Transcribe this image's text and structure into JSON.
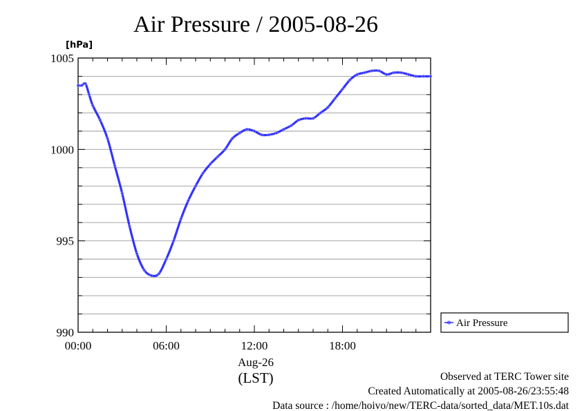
{
  "chart_data": {
    "type": "line",
    "title": "Air Pressure / 2005-08-26",
    "ylabel": "[hPa]",
    "ylim": [
      990,
      1005
    ],
    "y_ticks": [
      "990",
      "995",
      "1000",
      "1005"
    ],
    "y_minor_step": 1,
    "x_domain_hours": [
      0,
      24
    ],
    "x_ticks": [
      {
        "hour": 0,
        "label": "00:00"
      },
      {
        "hour": 6,
        "label": "06:00"
      },
      {
        "hour": 12,
        "label": "12:00"
      },
      {
        "hour": 18,
        "label": "18:00"
      }
    ],
    "x_date_label": "Aug-26",
    "x_unit_label": "(LST)",
    "grid": true,
    "legend_position": "right",
    "series": [
      {
        "name": "Air Pressure",
        "color": "#3333ff",
        "x_hours": [
          0.0,
          0.25,
          0.5,
          0.75,
          1.0,
          1.5,
          2.0,
          2.5,
          3.0,
          3.5,
          4.0,
          4.5,
          5.0,
          5.5,
          6.0,
          6.5,
          7.0,
          7.5,
          8.0,
          8.5,
          9.0,
          9.5,
          10.0,
          10.5,
          11.0,
          11.5,
          12.0,
          12.5,
          13.0,
          13.5,
          14.0,
          14.5,
          15.0,
          15.5,
          16.0,
          16.5,
          17.0,
          17.5,
          18.0,
          18.5,
          19.0,
          19.5,
          20.0,
          20.5,
          21.0,
          21.5,
          22.0,
          22.5,
          23.0,
          23.5,
          24.0
        ],
        "values": [
          1003.5,
          1003.5,
          1003.6,
          1003.0,
          1002.4,
          1001.6,
          1000.6,
          999.1,
          997.6,
          995.8,
          994.3,
          993.4,
          993.1,
          993.2,
          994.0,
          995.0,
          996.2,
          997.2,
          998.0,
          998.7,
          999.2,
          999.6,
          1000.0,
          1000.6,
          1000.9,
          1001.1,
          1001.0,
          1000.8,
          1000.8,
          1000.9,
          1001.1,
          1001.3,
          1001.6,
          1001.7,
          1001.7,
          1002.0,
          1002.3,
          1002.8,
          1003.3,
          1003.8,
          1004.1,
          1004.2,
          1004.3,
          1004.3,
          1004.1,
          1004.2,
          1004.2,
          1004.1,
          1004.0,
          1004.0,
          1004.0
        ]
      }
    ]
  },
  "footer": {
    "line1": "Observed at TERC Tower site",
    "line2": "Created Automatically at 2005-08-26/23:55:48",
    "line3": "Data source : /home/hoivo/new/TERC-data/sorted_data/MET.10s.dat"
  }
}
